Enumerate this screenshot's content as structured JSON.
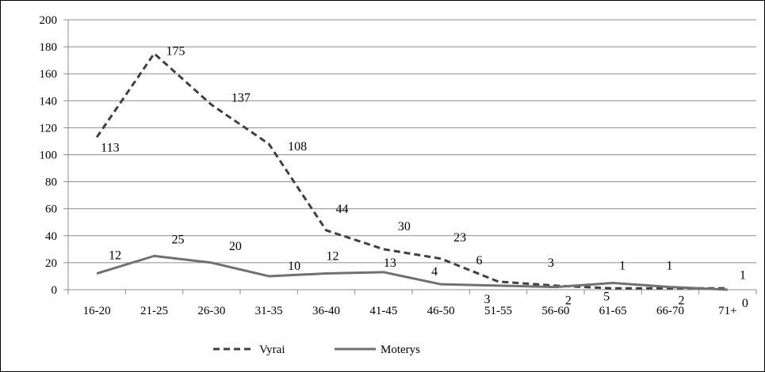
{
  "chart_data": {
    "type": "line",
    "categories": [
      "16-20",
      "21-25",
      "26-30",
      "31-35",
      "36-40",
      "41-45",
      "46-50",
      "51-55",
      "56-60",
      "61-65",
      "66-70",
      "71+"
    ],
    "series": [
      {
        "name": "Vyrai",
        "values": [
          113,
          175,
          137,
          108,
          44,
          30,
          23,
          6,
          3,
          1,
          1,
          1
        ],
        "color": "#404040",
        "line_style": "dashed"
      },
      {
        "name": "Moterys",
        "values": [
          12,
          25,
          20,
          10,
          12,
          13,
          4,
          3,
          2,
          5,
          2,
          0
        ],
        "color": "#707070",
        "line_style": "solid"
      }
    ],
    "ylim": [
      0,
      200
    ],
    "yticks": [
      0,
      20,
      40,
      60,
      80,
      100,
      120,
      140,
      160,
      180,
      200
    ],
    "grid": true,
    "legend_position": "bottom",
    "title": "",
    "xlabel": "",
    "ylabel": ""
  }
}
